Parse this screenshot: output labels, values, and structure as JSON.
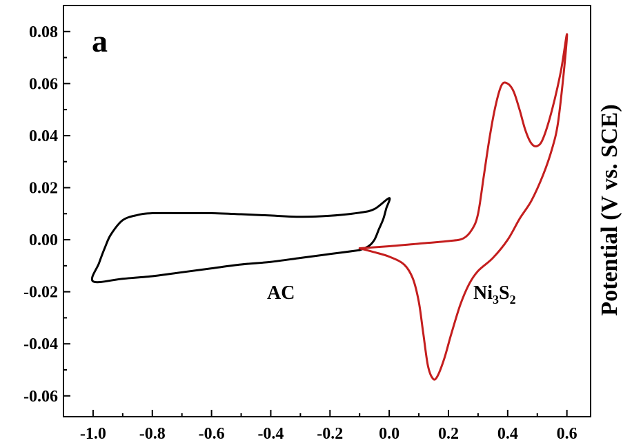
{
  "chart_data": {
    "type": "line",
    "panel_label": "a",
    "ylabel": "Potential (V vs. SCE)",
    "xlim": [
      -1.1,
      0.68
    ],
    "ylim": [
      -0.068,
      0.09
    ],
    "x_ticks": [
      "-1.0",
      "-0.8",
      "-0.6",
      "-0.4",
      "-0.2",
      "0.0",
      "0.2",
      "0.4",
      "0.6"
    ],
    "x_tick_values": [
      -1.0,
      -0.8,
      -0.6,
      -0.4,
      -0.2,
      0.0,
      0.2,
      0.4,
      0.6
    ],
    "y_ticks": [
      "0.08",
      "0.06",
      "0.04",
      "0.02",
      "0.00",
      "-0.02",
      "-0.04",
      "-0.06"
    ],
    "y_tick_values": [
      0.08,
      0.06,
      0.04,
      0.02,
      0.0,
      -0.02,
      -0.04,
      -0.06
    ],
    "grid": false,
    "series": [
      {
        "name": "AC",
        "color": "#000000",
        "points": [
          [
            -0.1,
            -0.004
          ],
          [
            -0.2,
            -0.0055
          ],
          [
            -0.3,
            -0.007
          ],
          [
            -0.4,
            -0.0085
          ],
          [
            -0.5,
            -0.0095
          ],
          [
            -0.6,
            -0.011
          ],
          [
            -0.7,
            -0.0125
          ],
          [
            -0.8,
            -0.014
          ],
          [
            -0.9,
            -0.015
          ],
          [
            -1.0,
            -0.016
          ],
          [
            -0.98,
            -0.009
          ],
          [
            -0.96,
            -0.003
          ],
          [
            -0.94,
            0.002
          ],
          [
            -0.9,
            0.0075
          ],
          [
            -0.85,
            0.0095
          ],
          [
            -0.8,
            0.0102
          ],
          [
            -0.7,
            0.0102
          ],
          [
            -0.6,
            0.0102
          ],
          [
            -0.5,
            0.0098
          ],
          [
            -0.4,
            0.0093
          ],
          [
            -0.3,
            0.0088
          ],
          [
            -0.2,
            0.0092
          ],
          [
            -0.1,
            0.0104
          ],
          [
            -0.05,
            0.0118
          ],
          [
            0.0,
            0.016
          ],
          [
            -0.01,
            0.012
          ],
          [
            -0.02,
            0.008
          ],
          [
            -0.035,
            0.004
          ],
          [
            -0.05,
            0.0
          ],
          [
            -0.07,
            -0.0025
          ],
          [
            -0.1,
            -0.004
          ]
        ]
      },
      {
        "name": "Ni₃S₂",
        "color": "#c41e1e",
        "points": [
          [
            -0.1,
            -0.0033
          ],
          [
            0.0,
            -0.0025
          ],
          [
            0.1,
            -0.0015
          ],
          [
            0.2,
            -0.0005
          ],
          [
            0.25,
            0.0005
          ],
          [
            0.28,
            0.004
          ],
          [
            0.3,
            0.01
          ],
          [
            0.32,
            0.025
          ],
          [
            0.34,
            0.04
          ],
          [
            0.36,
            0.052
          ],
          [
            0.38,
            0.0595
          ],
          [
            0.4,
            0.06
          ],
          [
            0.42,
            0.057
          ],
          [
            0.44,
            0.05
          ],
          [
            0.46,
            0.042
          ],
          [
            0.48,
            0.037
          ],
          [
            0.5,
            0.036
          ],
          [
            0.52,
            0.039
          ],
          [
            0.55,
            0.05
          ],
          [
            0.58,
            0.065
          ],
          [
            0.6,
            0.079
          ],
          [
            0.59,
            0.065
          ],
          [
            0.57,
            0.045
          ],
          [
            0.55,
            0.035
          ],
          [
            0.52,
            0.025
          ],
          [
            0.48,
            0.015
          ],
          [
            0.44,
            0.008
          ],
          [
            0.4,
            0.0
          ],
          [
            0.35,
            -0.007
          ],
          [
            0.3,
            -0.012
          ],
          [
            0.27,
            -0.017
          ],
          [
            0.24,
            -0.025
          ],
          [
            0.21,
            -0.036
          ],
          [
            0.185,
            -0.046
          ],
          [
            0.16,
            -0.053
          ],
          [
            0.145,
            -0.053
          ],
          [
            0.13,
            -0.048
          ],
          [
            0.115,
            -0.036
          ],
          [
            0.1,
            -0.024
          ],
          [
            0.08,
            -0.015
          ],
          [
            0.05,
            -0.0095
          ],
          [
            0.0,
            -0.0065
          ],
          [
            -0.05,
            -0.0048
          ],
          [
            -0.1,
            -0.0033
          ]
        ]
      }
    ],
    "annotations": [
      {
        "text": "AC",
        "x": -0.33,
        "y": -0.024
      },
      {
        "base": "Ni",
        "sub1": "3",
        "mid": "S",
        "sub2": "2",
        "x": 0.32,
        "y": -0.024
      }
    ]
  }
}
